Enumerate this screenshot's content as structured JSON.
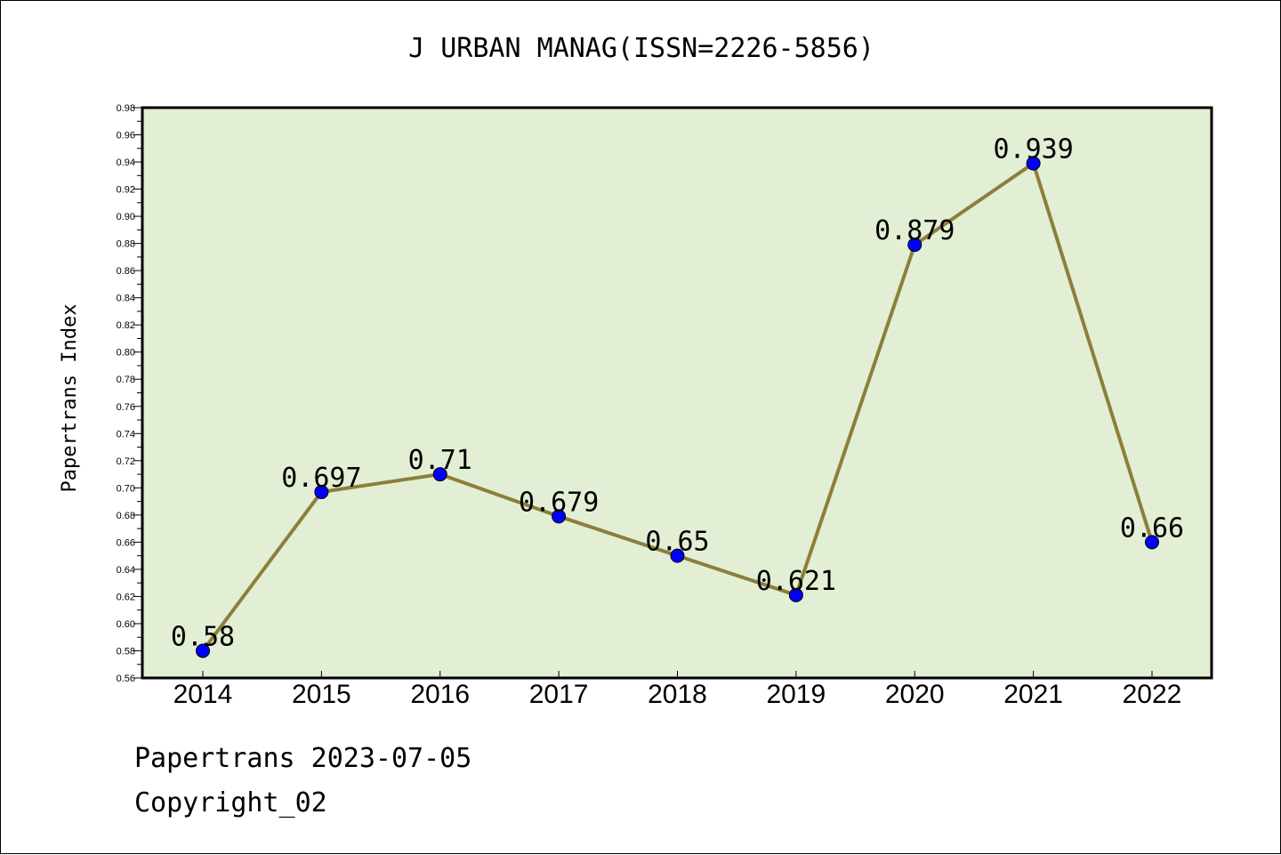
{
  "chart_data": {
    "type": "line",
    "title": "J URBAN MANAG(ISSN=2226-5856)",
    "ylabel": "Papertrans Index",
    "xlabel": "",
    "categories": [
      "2014",
      "2015",
      "2016",
      "2017",
      "2018",
      "2019",
      "2020",
      "2021",
      "2022"
    ],
    "series": [
      {
        "values": [
          0.58,
          0.697,
          0.71,
          0.679,
          0.65,
          0.621,
          0.879,
          0.939,
          0.66
        ]
      }
    ],
    "data_labels": [
      "0.58",
      "0.697",
      "0.71",
      "0.679",
      "0.65",
      "0.621",
      "0.879",
      "0.939",
      "0.66"
    ],
    "ylim": [
      0.56,
      0.98
    ],
    "yticks": [
      "0.56",
      "0.58",
      "0.60",
      "0.62",
      "0.64",
      "0.66",
      "0.68",
      "0.70",
      "0.72",
      "0.74",
      "0.76",
      "0.78",
      "0.80",
      "0.82",
      "0.84",
      "0.86",
      "0.88",
      "0.90",
      "0.92",
      "0.94",
      "0.96",
      "0.98"
    ],
    "grid": false,
    "colors": {
      "plot_background": "#e2efd5",
      "line": "#8c7f3a",
      "marker": "#0000ff"
    }
  },
  "footer": {
    "line1": "Papertrans 2023-07-05",
    "line2": "Copyright_02"
  }
}
